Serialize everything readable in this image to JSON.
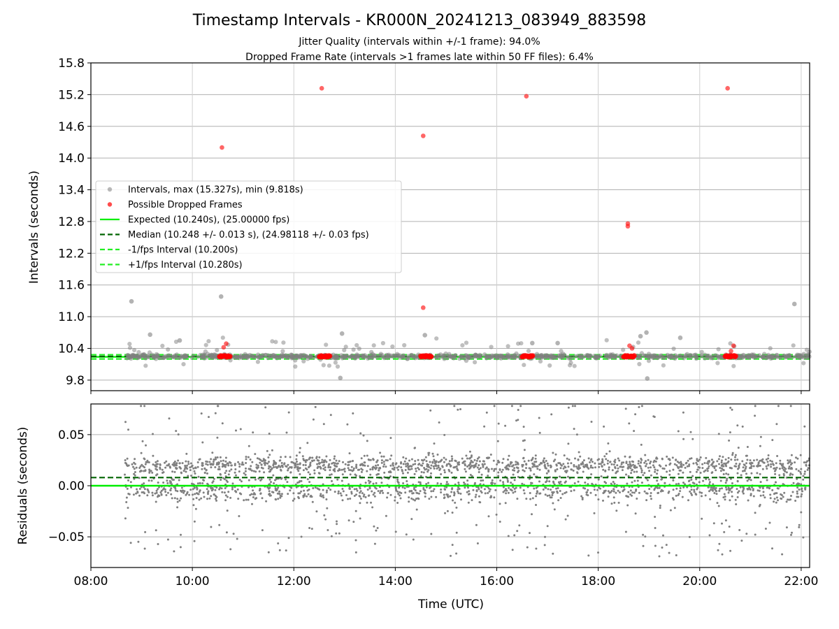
{
  "figure": {
    "title": "Timestamp Intervals - KR000N_20241213_083949_883598",
    "subtitle_1": "Jitter Quality (intervals within +/-1 frame): 94.0%",
    "subtitle_2": "Dropped Frame Rate (intervals >1 frames late within 50 FF files): 6.4%",
    "xlabel": "Time (UTC)"
  },
  "colors": {
    "intervals": "#808080",
    "dropped": "#ff0000",
    "expected": "#00ee00",
    "median": "#006400",
    "jitter_band": "#22ee22",
    "grid": "#b0b0b0"
  },
  "chart_data": [
    {
      "type": "scatter",
      "panel": "top",
      "ylabel": "Intervals (seconds)",
      "ylim": [
        9.6,
        15.8
      ],
      "yticks": [
        9.8,
        10.4,
        11.0,
        11.6,
        12.2,
        12.8,
        13.4,
        14.0,
        14.6,
        15.2,
        15.8
      ],
      "xlim": [
        "08:00",
        "22:10"
      ],
      "xticks": [
        "08:00",
        "10:00",
        "12:00",
        "14:00",
        "16:00",
        "18:00",
        "20:00",
        "22:00"
      ],
      "grid": true,
      "legend_position": "center-left",
      "legend": [
        {
          "label": "Intervals, max (15.327s), min (9.818s)",
          "kind": "dot",
          "color": "#808080"
        },
        {
          "label": "Possible Dropped Frames",
          "kind": "dot",
          "color": "#ff0000"
        },
        {
          "label": "Expected (10.240s), (25.00000 fps)",
          "kind": "solid",
          "color": "#00ee00"
        },
        {
          "label": "Median (10.248 +/- 0.013 s), (24.98118 +/- 0.03 fps)",
          "kind": "dashed",
          "color": "#006400"
        },
        {
          "label": "-1/fps Interval (10.200s)",
          "kind": "dashed",
          "color": "#22ee22"
        },
        {
          "label": "+1/fps Interval (10.280s)",
          "kind": "dashed",
          "color": "#22ee22"
        }
      ],
      "reference_lines": {
        "expected": 10.24,
        "median": 10.248,
        "minus_1fps": 10.2,
        "plus_1fps": 10.28
      },
      "series": [
        {
          "name": "Possible Dropped Frames",
          "color": "#ff0000",
          "points": [
            {
              "x": "10:35",
              "y": 14.2
            },
            {
              "x": "12:33",
              "y": 15.32
            },
            {
              "x": "14:33",
              "y": 14.42
            },
            {
              "x": "14:33",
              "y": 11.17
            },
            {
              "x": "16:35",
              "y": 15.17
            },
            {
              "x": "18:35",
              "y": 12.76
            },
            {
              "x": "18:35",
              "y": 12.71
            },
            {
              "x": "20:33",
              "y": 15.32
            },
            {
              "x": "10:37",
              "y": 10.42
            },
            {
              "x": "10:40",
              "y": 10.49
            },
            {
              "x": "18:37",
              "y": 10.45
            },
            {
              "x": "18:40",
              "y": 10.4
            },
            {
              "x": "20:40",
              "y": 10.45
            },
            {
              "x": "20:37",
              "y": 10.35
            }
          ],
          "clusters": [
            {
              "x_start": "10:32",
              "x_end": "10:45",
              "y": 10.25
            },
            {
              "x_start": "12:30",
              "x_end": "12:43",
              "y": 10.25
            },
            {
              "x_start": "14:30",
              "x_end": "14:43",
              "y": 10.25
            },
            {
              "x_start": "16:30",
              "x_end": "16:43",
              "y": 10.25
            },
            {
              "x_start": "18:30",
              "x_end": "18:43",
              "y": 10.25
            },
            {
              "x_start": "20:30",
              "x_end": "20:43",
              "y": 10.25
            }
          ]
        },
        {
          "name": "Intervals, max (15.327s), min (9.818s)",
          "color": "#808080",
          "points": [
            {
              "x": "08:48",
              "y": 11.29
            },
            {
              "x": "10:34",
              "y": 11.38
            },
            {
              "x": "21:52",
              "y": 11.24
            },
            {
              "x": "12:57",
              "y": 10.68
            },
            {
              "x": "14:35",
              "y": 10.65
            },
            {
              "x": "18:57",
              "y": 10.7
            },
            {
              "x": "18:50",
              "y": 10.63
            },
            {
              "x": "19:37",
              "y": 10.6
            },
            {
              "x": "09:10",
              "y": 10.66
            },
            {
              "x": "09:45",
              "y": 10.55
            },
            {
              "x": "12:55",
              "y": 9.84
            },
            {
              "x": "18:58",
              "y": 9.83
            },
            {
              "x": "16:42",
              "y": 10.5
            },
            {
              "x": "17:12",
              "y": 10.5
            }
          ],
          "band": {
            "x_start": "08:40",
            "x_end": "22:10",
            "y_min": 9.9,
            "y_max": 10.62,
            "dense_y": [
              10.2,
              10.3
            ]
          }
        }
      ]
    },
    {
      "type": "scatter",
      "panel": "bottom",
      "ylabel": "Residuals (seconds)",
      "ylim": [
        -0.08,
        0.08
      ],
      "yticks": [
        -0.05,
        0.0,
        0.05
      ],
      "ytick_labels": [
        "−0.05",
        "0.00",
        "0.05"
      ],
      "xlim": [
        "08:00",
        "22:10"
      ],
      "xticks": [
        "08:00",
        "10:00",
        "12:00",
        "14:00",
        "16:00",
        "18:00",
        "20:00",
        "22:00"
      ],
      "grid": true,
      "reference_lines": {
        "zero": 0.0,
        "median_offset": 0.008
      },
      "series": [
        {
          "name": "Residuals",
          "color": "#808080",
          "band": {
            "x_start": "08:40",
            "x_end": "22:10",
            "dense_y": [
              -0.02,
              0.03
            ],
            "y_min": -0.08,
            "y_max": 0.08
          }
        }
      ]
    }
  ]
}
